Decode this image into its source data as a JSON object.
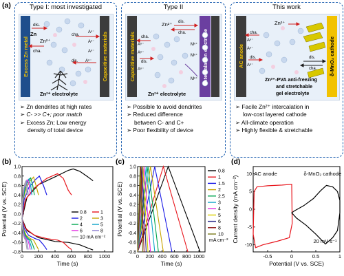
{
  "panel_a": {
    "label": "(a)",
    "type1": {
      "title": "Type I: most investigated",
      "anode": "Excess Zn metal",
      "cathode": "Capacitive materials",
      "zn_label": "Zn",
      "zn2_label": "Zn²⁺",
      "dis": "dis.",
      "cha": "cha.",
      "anion": "Aⁿ⁻",
      "electrolyte": "Zn²⁺ electrolyte",
      "bullets": [
        "Zn dendrites at high rates",
        "C- >> C+; poor match",
        "Excess Zn; Low energy",
        "density of total device"
      ]
    },
    "type2": {
      "title": "Type II",
      "anode": "Capacitive materials",
      "cathode": "Intercalation electrode",
      "zn2_label": "Zn²⁺",
      "dis": "dis.",
      "cha": "cha.",
      "anion": "Aⁿ⁻",
      "mn": "Mⁿ⁺",
      "electrolyte": "Zn²⁺ electrolyte",
      "bullets": [
        "Possible to avoid dendrites",
        "Reduced difference",
        "between C- and C+",
        "Poor flexibility of device"
      ]
    },
    "type3": {
      "title": "This work",
      "anode": "AC anode",
      "cathode": "δ-MnO₂ cathode",
      "zn2_label": "Zn²⁺",
      "dis": "dis.",
      "cha": "cha.",
      "anion": "Aⁿ⁻",
      "electrolyte_l1": "Zn²⁺-PVA anti-freezing",
      "electrolyte_l2": "and stretchable",
      "electrolyte_l3": "gel electrolyte",
      "bullets": [
        "Facile Zn²⁺ intercalation in",
        "low-cost layered cathode",
        "All-climate operation",
        "Highly flexible & stretchable"
      ]
    },
    "colors": {
      "zn_blue": "#1f4e8c",
      "cap_gray": "#3c3c3c",
      "inter_purple": "#6b3fa0",
      "cathode_yellow": "#f2c200",
      "arrow_red": "#d11f1f"
    }
  },
  "chart_data": [
    {
      "id": "b",
      "label": "(b)",
      "type": "line",
      "xlabel": "Time (s)",
      "ylabel": "Potential (V vs. SCE)",
      "xlim": [
        0,
        1100
      ],
      "ylim": [
        -0.8,
        1.0
      ],
      "xticks": [
        0,
        200,
        400,
        600,
        800,
        1000
      ],
      "yticks": [
        -0.8,
        -0.6,
        -0.4,
        -0.2,
        0.0,
        0.2,
        0.4,
        0.6,
        0.8,
        1.0
      ],
      "legend_unit": "10 mA cm⁻²",
      "legend_placement": "bottom-right",
      "series": [
        {
          "name": "0.8",
          "color": "#000000",
          "cathode": [
            [
              0,
              -0.1
            ],
            [
              60,
              0.35
            ],
            [
              200,
              0.62
            ],
            [
              420,
              0.8
            ],
            [
              560,
              0.92
            ],
            [
              620,
              0.95
            ],
            [
              700,
              0.9
            ],
            [
              800,
              0.78
            ],
            [
              860,
              0.7
            ]
          ],
          "anode": [
            [
              0,
              -0.1
            ],
            [
              60,
              -0.35
            ],
            [
              200,
              -0.5
            ],
            [
              400,
              -0.58
            ],
            [
              560,
              -0.6
            ],
            [
              700,
              -0.65
            ],
            [
              800,
              -0.72
            ],
            [
              860,
              -0.76
            ]
          ]
        },
        {
          "name": "1",
          "color": "#e8141b",
          "cathode": [
            [
              0,
              -0.1
            ],
            [
              40,
              0.3
            ],
            [
              150,
              0.55
            ],
            [
              300,
              0.75
            ],
            [
              430,
              0.85
            ],
            [
              500,
              0.75
            ],
            [
              560,
              0.5
            ],
            [
              600,
              0.4
            ]
          ],
          "anode": [
            [
              0,
              -0.1
            ],
            [
              40,
              -0.3
            ],
            [
              150,
              -0.45
            ],
            [
              300,
              -0.52
            ],
            [
              430,
              -0.55
            ],
            [
              500,
              -0.6
            ],
            [
              560,
              -0.7
            ],
            [
              600,
              -0.75
            ]
          ]
        },
        {
          "name": "2",
          "color": "#1a1ae6",
          "cathode": [
            [
              0,
              -0.1
            ],
            [
              25,
              0.3
            ],
            [
              80,
              0.55
            ],
            [
              160,
              0.72
            ],
            [
              210,
              0.8
            ],
            [
              260,
              0.6
            ],
            [
              300,
              0.4
            ]
          ],
          "anode": [
            [
              0,
              -0.1
            ],
            [
              25,
              -0.3
            ],
            [
              80,
              -0.45
            ],
            [
              160,
              -0.52
            ],
            [
              210,
              -0.55
            ],
            [
              260,
              -0.65
            ],
            [
              300,
              -0.75
            ]
          ]
        },
        {
          "name": "3",
          "color": "#c8a400",
          "cathode": [
            [
              0,
              -0.1
            ],
            [
              15,
              0.3
            ],
            [
              50,
              0.55
            ],
            [
              100,
              0.7
            ],
            [
              140,
              0.78
            ],
            [
              170,
              0.6
            ],
            [
              200,
              0.4
            ]
          ],
          "anode": [
            [
              0,
              -0.1
            ],
            [
              15,
              -0.3
            ],
            [
              50,
              -0.45
            ],
            [
              100,
              -0.52
            ],
            [
              140,
              -0.55
            ],
            [
              170,
              -0.65
            ],
            [
              200,
              -0.75
            ]
          ]
        },
        {
          "name": "4",
          "color": "#00a64f",
          "cathode": [
            [
              0,
              -0.1
            ],
            [
              12,
              0.3
            ],
            [
              40,
              0.55
            ],
            [
              75,
              0.7
            ],
            [
              105,
              0.76
            ],
            [
              130,
              0.6
            ],
            [
              150,
              0.4
            ]
          ],
          "anode": [
            [
              0,
              -0.1
            ],
            [
              12,
              -0.3
            ],
            [
              40,
              -0.45
            ],
            [
              75,
              -0.52
            ],
            [
              105,
              -0.55
            ],
            [
              130,
              -0.65
            ],
            [
              150,
              -0.75
            ]
          ]
        },
        {
          "name": "5",
          "color": "#0aa3c8",
          "cathode": [
            [
              0,
              -0.1
            ],
            [
              10,
              0.3
            ],
            [
              30,
              0.55
            ],
            [
              60,
              0.68
            ],
            [
              85,
              0.74
            ],
            [
              105,
              0.6
            ],
            [
              120,
              0.4
            ]
          ],
          "anode": [
            [
              0,
              -0.1
            ],
            [
              10,
              -0.3
            ],
            [
              30,
              -0.45
            ],
            [
              60,
              -0.52
            ],
            [
              85,
              -0.55
            ],
            [
              105,
              -0.65
            ],
            [
              120,
              -0.75
            ]
          ]
        },
        {
          "name": "6",
          "color": "#e22ae0",
          "cathode": [
            [
              0,
              -0.1
            ],
            [
              8,
              0.3
            ],
            [
              25,
              0.55
            ],
            [
              50,
              0.67
            ],
            [
              70,
              0.72
            ],
            [
              88,
              0.6
            ],
            [
              100,
              0.4
            ]
          ],
          "anode": [
            [
              0,
              -0.1
            ],
            [
              8,
              -0.3
            ],
            [
              25,
              -0.45
            ],
            [
              50,
              -0.52
            ],
            [
              70,
              -0.55
            ],
            [
              88,
              -0.65
            ],
            [
              100,
              -0.75
            ]
          ]
        },
        {
          "name": "8",
          "color": "#8a7ad0",
          "cathode": [
            [
              0,
              -0.1
            ],
            [
              6,
              0.3
            ],
            [
              20,
              0.52
            ],
            [
              38,
              0.65
            ],
            [
              52,
              0.7
            ],
            [
              65,
              0.58
            ],
            [
              75,
              0.4
            ]
          ],
          "anode": [
            [
              0,
              -0.1
            ],
            [
              6,
              -0.3
            ],
            [
              20,
              -0.45
            ],
            [
              38,
              -0.52
            ],
            [
              52,
              -0.55
            ],
            [
              65,
              -0.65
            ],
            [
              75,
              -0.75
            ]
          ]
        },
        {
          "name": "10 mA cm⁻²",
          "color": "#aaaaaa",
          "cathode": [
            [
              0,
              -0.1
            ],
            [
              5,
              0.3
            ],
            [
              15,
              0.5
            ],
            [
              30,
              0.63
            ],
            [
              42,
              0.68
            ],
            [
              52,
              0.56
            ],
            [
              60,
              0.4
            ]
          ],
          "anode": [
            [
              0,
              -0.1
            ],
            [
              5,
              -0.3
            ],
            [
              15,
              -0.45
            ],
            [
              30,
              -0.52
            ],
            [
              42,
              -0.55
            ],
            [
              52,
              -0.65
            ],
            [
              60,
              -0.75
            ]
          ]
        }
      ]
    },
    {
      "id": "c",
      "label": "(c)",
      "type": "line",
      "xlabel": "Time (s)",
      "ylabel": "Potential (V vs. SCE)",
      "xlim": [
        0,
        1100
      ],
      "ylim": [
        -0.8,
        1.0
      ],
      "xticks": [
        0,
        200,
        400,
        600,
        800,
        1000
      ],
      "yticks": [
        -0.8,
        -0.6,
        -0.4,
        -0.2,
        0.0,
        0.2,
        0.4,
        0.6,
        0.8,
        1.0
      ],
      "legend_unit": "mA cm⁻²",
      "legend_placement": "right",
      "series": [
        {
          "name": "0.8",
          "color": "#000000",
          "peak": 500,
          "end": 1020
        },
        {
          "name": "1",
          "color": "#e8141b",
          "peak": 420,
          "end": 820
        },
        {
          "name": "1.5",
          "color": "#1a1ae6",
          "peak": 280,
          "end": 560
        },
        {
          "name": "2",
          "color": "#c8a400",
          "peak": 210,
          "end": 420
        },
        {
          "name": "2.5",
          "color": "#00a64f",
          "peak": 170,
          "end": 340
        },
        {
          "name": "3",
          "color": "#0aa3c8",
          "peak": 140,
          "end": 280
        },
        {
          "name": "4",
          "color": "#e22ae0",
          "peak": 105,
          "end": 210
        },
        {
          "name": "5",
          "color": "#d9d000",
          "peak": 85,
          "end": 170
        },
        {
          "name": "6",
          "color": "#2a2a8a",
          "peak": 70,
          "end": 140
        },
        {
          "name": "8",
          "color": "#8a1010",
          "peak": 52,
          "end": 105
        },
        {
          "name": "10",
          "color": "#7a7a1a",
          "peak": 42,
          "end": 84
        }
      ]
    },
    {
      "id": "d",
      "label": "(d)",
      "type": "line",
      "xlabel": "Potential (V vs. SCE)",
      "ylabel": "Current density (mA cm⁻²)",
      "xlim": [
        -0.8,
        1.0
      ],
      "ylim": [
        -12,
        12
      ],
      "xticks": [
        -0.5,
        0.0,
        0.5,
        1.0
      ],
      "yticks": [
        -10,
        -5,
        0,
        5,
        10
      ],
      "annotation": "20 mV s⁻¹",
      "series": [
        {
          "name": "AC anode",
          "color": "#e8141b",
          "points": [
            [
              -0.8,
              -7
            ],
            [
              -0.78,
              5
            ],
            [
              -0.72,
              6.3
            ],
            [
              -0.5,
              6.6
            ],
            [
              -0.2,
              6.8
            ],
            [
              0.0,
              7
            ],
            [
              0.01,
              -4
            ],
            [
              -0.05,
              -8
            ],
            [
              -0.3,
              -9
            ],
            [
              -0.6,
              -10
            ],
            [
              -0.75,
              -10.8
            ],
            [
              -0.8,
              -7
            ]
          ]
        },
        {
          "name": "δ-MnO₂ cathode",
          "color": "#000000",
          "points": [
            [
              0.0,
              -1
            ],
            [
              0.05,
              -0.5
            ],
            [
              0.25,
              1
            ],
            [
              0.45,
              3
            ],
            [
              0.6,
              5.2
            ],
            [
              0.72,
              6.7
            ],
            [
              0.85,
              6.3
            ],
            [
              0.95,
              5
            ],
            [
              1.0,
              2.5
            ],
            [
              1.0,
              -1
            ],
            [
              0.95,
              -6
            ],
            [
              0.85,
              -8
            ],
            [
              0.7,
              -9.8
            ],
            [
              0.5,
              -7
            ],
            [
              0.3,
              -4.5
            ],
            [
              0.1,
              -2.5
            ],
            [
              0.0,
              -1
            ]
          ]
        }
      ]
    }
  ]
}
